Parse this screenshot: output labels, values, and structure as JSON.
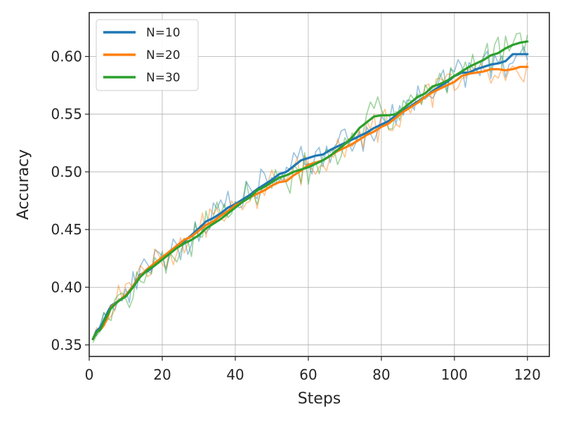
{
  "chart_data": {
    "type": "line",
    "xlabel": "Steps",
    "ylabel": "Accuracy",
    "xlim": [
      0,
      126
    ],
    "ylim": [
      0.34,
      0.638
    ],
    "xticks": [
      0,
      20,
      40,
      60,
      80,
      100,
      120
    ],
    "yticks": [
      0.35,
      0.4,
      0.45,
      0.5,
      0.55,
      0.6
    ],
    "xtick_labels": [
      "0",
      "20",
      "40",
      "60",
      "80",
      "100",
      "120"
    ],
    "ytick_labels": [
      "0.35",
      "0.40",
      "0.45",
      "0.50",
      "0.55",
      "0.60"
    ],
    "grid": true,
    "legend_position": "top-left",
    "series": [
      {
        "name": "N=10",
        "color": "#1f77b4",
        "smoothed_x": [
          1,
          2,
          3,
          4,
          5,
          6,
          8,
          10,
          12,
          14,
          16,
          18,
          20,
          22,
          24,
          26,
          28,
          30,
          32,
          34,
          36,
          38,
          40,
          42,
          44,
          46,
          48,
          50,
          52,
          54,
          56,
          58,
          60,
          62,
          64,
          66,
          68,
          70,
          72,
          74,
          76,
          78,
          80,
          82,
          84,
          86,
          88,
          90,
          92,
          94,
          96,
          98,
          100,
          102,
          104,
          106,
          108,
          110,
          112,
          114,
          116,
          118,
          120
        ],
        "smoothed_y": [
          0.355,
          0.362,
          0.365,
          0.371,
          0.378,
          0.384,
          0.388,
          0.393,
          0.401,
          0.411,
          0.414,
          0.419,
          0.426,
          0.43,
          0.436,
          0.44,
          0.445,
          0.451,
          0.457,
          0.46,
          0.464,
          0.469,
          0.472,
          0.476,
          0.48,
          0.485,
          0.489,
          0.493,
          0.498,
          0.5,
          0.505,
          0.51,
          0.512,
          0.514,
          0.515,
          0.519,
          0.522,
          0.525,
          0.528,
          0.531,
          0.534,
          0.538,
          0.541,
          0.544,
          0.549,
          0.553,
          0.557,
          0.561,
          0.565,
          0.57,
          0.574,
          0.578,
          0.583,
          0.586,
          0.586,
          0.589,
          0.591,
          0.593,
          0.594,
          0.596,
          0.602,
          0.602,
          0.602
        ]
      },
      {
        "name": "N=20",
        "color": "#ff7f0e",
        "smoothed_x": [
          1,
          2,
          3,
          4,
          5,
          6,
          8,
          10,
          12,
          14,
          16,
          18,
          20,
          22,
          24,
          26,
          28,
          30,
          32,
          34,
          36,
          38,
          40,
          42,
          44,
          46,
          48,
          50,
          52,
          54,
          56,
          58,
          60,
          62,
          64,
          66,
          68,
          70,
          72,
          74,
          76,
          78,
          80,
          82,
          84,
          86,
          88,
          90,
          92,
          94,
          96,
          98,
          100,
          102,
          104,
          106,
          108,
          110,
          112,
          114,
          116,
          118,
          120
        ],
        "smoothed_y": [
          0.355,
          0.361,
          0.363,
          0.367,
          0.374,
          0.383,
          0.388,
          0.393,
          0.401,
          0.41,
          0.416,
          0.421,
          0.426,
          0.431,
          0.436,
          0.441,
          0.444,
          0.449,
          0.454,
          0.457,
          0.462,
          0.466,
          0.471,
          0.474,
          0.478,
          0.481,
          0.484,
          0.488,
          0.491,
          0.492,
          0.497,
          0.501,
          0.506,
          0.508,
          0.51,
          0.514,
          0.518,
          0.521,
          0.524,
          0.528,
          0.532,
          0.535,
          0.539,
          0.542,
          0.547,
          0.552,
          0.556,
          0.56,
          0.565,
          0.569,
          0.572,
          0.575,
          0.578,
          0.583,
          0.585,
          0.586,
          0.587,
          0.589,
          0.589,
          0.588,
          0.589,
          0.591,
          0.591
        ]
      },
      {
        "name": "N=30",
        "color": "#2ca02c",
        "smoothed_x": [
          1,
          2,
          3,
          4,
          5,
          6,
          8,
          10,
          12,
          14,
          16,
          18,
          20,
          22,
          24,
          26,
          28,
          30,
          32,
          34,
          36,
          38,
          40,
          42,
          44,
          46,
          48,
          50,
          52,
          54,
          56,
          58,
          60,
          62,
          64,
          66,
          68,
          70,
          72,
          74,
          76,
          78,
          80,
          82,
          84,
          86,
          88,
          90,
          92,
          94,
          96,
          98,
          100,
          102,
          104,
          106,
          108,
          110,
          112,
          114,
          116,
          118,
          120
        ],
        "smoothed_y": [
          0.355,
          0.361,
          0.363,
          0.37,
          0.376,
          0.382,
          0.388,
          0.392,
          0.4,
          0.409,
          0.415,
          0.419,
          0.424,
          0.429,
          0.434,
          0.438,
          0.441,
          0.445,
          0.451,
          0.455,
          0.459,
          0.464,
          0.469,
          0.474,
          0.478,
          0.484,
          0.487,
          0.491,
          0.495,
          0.497,
          0.5,
          0.502,
          0.504,
          0.507,
          0.51,
          0.514,
          0.519,
          0.524,
          0.53,
          0.538,
          0.543,
          0.548,
          0.549,
          0.549,
          0.55,
          0.555,
          0.56,
          0.565,
          0.568,
          0.574,
          0.576,
          0.579,
          0.583,
          0.587,
          0.591,
          0.594,
          0.597,
          0.601,
          0.603,
          0.607,
          0.61,
          0.612,
          0.613
        ]
      }
    ]
  }
}
